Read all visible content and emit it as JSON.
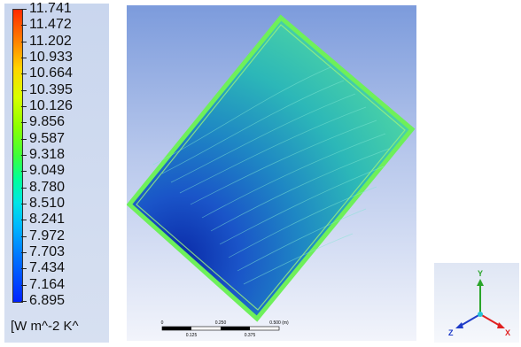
{
  "legend": {
    "values": [
      "11.741",
      "11.472",
      "11.202",
      "10.933",
      "10.664",
      "10.395",
      "10.126",
      "9.856",
      "9.587",
      "9.318",
      "9.049",
      "8.780",
      "8.510",
      "8.241",
      "7.972",
      "7.703",
      "7.434",
      "7.164",
      "6.895"
    ],
    "unit": "[W m^-2 K^"
  },
  "scale_bar": {
    "ticks": [
      "0",
      "0.250",
      "0.500 (m)"
    ],
    "minor": [
      "0.125",
      "0.375"
    ]
  },
  "axis_triad": {
    "y": "Y",
    "z": "Z",
    "x": "X",
    "colors": {
      "y": "#2aa52a",
      "z": "#1f3cc8",
      "x": "#e02020",
      "origin": "#27c4d6"
    }
  }
}
